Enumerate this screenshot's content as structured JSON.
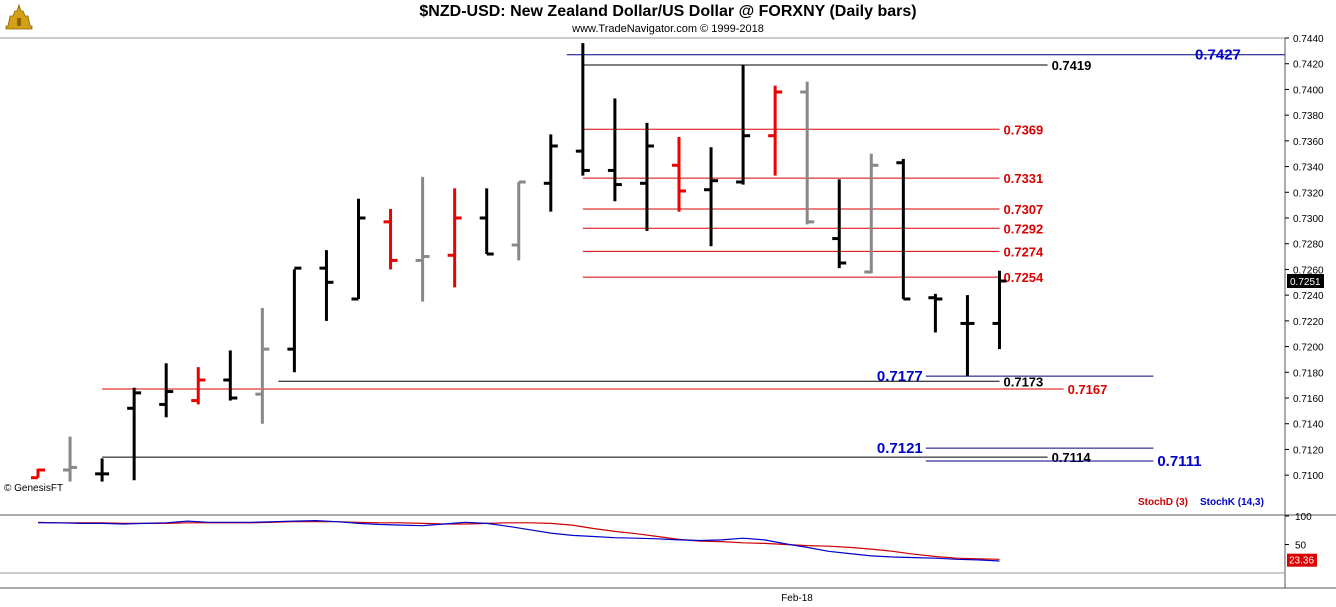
{
  "header": {
    "title": "$NZD-USD:  New Zealand Dollar/US Dollar @ FORXNY  (Daily bars)",
    "subtitle": "www.TradeNavigator.com © 1999-2018"
  },
  "footer": {
    "copyright": "© GenesisFT",
    "x_label": "Feb-18"
  },
  "chart_data": [
    {
      "type": "ohlc",
      "title": "$NZD-USD:  New Zealand Dollar/US Dollar @ FORXNY  (Daily bars)",
      "ylim": [
        0.709,
        0.744
      ],
      "yticks": [
        "0.7440",
        "0.7420",
        "0.7400",
        "0.7380",
        "0.7360",
        "0.7340",
        "0.7320",
        "0.7300",
        "0.7280",
        "0.7260",
        "0.7240",
        "0.7220",
        "0.7200",
        "0.7180",
        "0.7160",
        "0.7140",
        "0.7120",
        "0.7100"
      ],
      "last_price": "0.7251",
      "colors": {
        "up": "#000000",
        "down": "#ee0000",
        "neutral": "#888888"
      },
      "bars": [
        {
          "o": 0.7098,
          "h": 0.7105,
          "l": 0.7098,
          "c": 0.7104,
          "color": "down"
        },
        {
          "o": 0.7104,
          "h": 0.713,
          "l": 0.7095,
          "c": 0.7106,
          "color": "neutral"
        },
        {
          "o": 0.7101,
          "h": 0.7113,
          "l": 0.7095,
          "c": 0.7101,
          "color": "up"
        },
        {
          "o": 0.7152,
          "h": 0.7168,
          "l": 0.7096,
          "c": 0.7164,
          "color": "up"
        },
        {
          "o": 0.7155,
          "h": 0.7187,
          "l": 0.7145,
          "c": 0.7165,
          "color": "up"
        },
        {
          "o": 0.7158,
          "h": 0.7184,
          "l": 0.7155,
          "c": 0.7174,
          "color": "down"
        },
        {
          "o": 0.7174,
          "h": 0.7197,
          "l": 0.7158,
          "c": 0.716,
          "color": "up"
        },
        {
          "o": 0.7163,
          "h": 0.723,
          "l": 0.714,
          "c": 0.7198,
          "color": "neutral"
        },
        {
          "o": 0.7198,
          "h": 0.726,
          "l": 0.718,
          "c": 0.7261,
          "color": "up"
        },
        {
          "o": 0.7261,
          "h": 0.7275,
          "l": 0.722,
          "c": 0.725,
          "color": "up"
        },
        {
          "o": 0.7237,
          "h": 0.7315,
          "l": 0.7237,
          "c": 0.73,
          "color": "up"
        },
        {
          "o": 0.7297,
          "h": 0.7307,
          "l": 0.726,
          "c": 0.7267,
          "color": "down"
        },
        {
          "o": 0.7267,
          "h": 0.7332,
          "l": 0.7235,
          "c": 0.727,
          "color": "neutral"
        },
        {
          "o": 0.7271,
          "h": 0.7323,
          "l": 0.7246,
          "c": 0.73,
          "color": "down"
        },
        {
          "o": 0.73,
          "h": 0.7323,
          "l": 0.7272,
          "c": 0.7272,
          "color": "up"
        },
        {
          "o": 0.7279,
          "h": 0.7328,
          "l": 0.7267,
          "c": 0.7328,
          "color": "neutral"
        },
        {
          "o": 0.7327,
          "h": 0.7365,
          "l": 0.7305,
          "c": 0.7356,
          "color": "up"
        },
        {
          "o": 0.7352,
          "h": 0.7436,
          "l": 0.7333,
          "c": 0.7337,
          "color": "up"
        },
        {
          "o": 0.7337,
          "h": 0.7393,
          "l": 0.7313,
          "c": 0.7326,
          "color": "up"
        },
        {
          "o": 0.7327,
          "h": 0.7374,
          "l": 0.729,
          "c": 0.7356,
          "color": "up"
        },
        {
          "o": 0.7341,
          "h": 0.7363,
          "l": 0.7305,
          "c": 0.7321,
          "color": "down"
        },
        {
          "o": 0.7322,
          "h": 0.7355,
          "l": 0.7278,
          "c": 0.7329,
          "color": "up"
        },
        {
          "o": 0.7328,
          "h": 0.7419,
          "l": 0.7326,
          "c": 0.7364,
          "color": "up"
        },
        {
          "o": 0.7364,
          "h": 0.7403,
          "l": 0.7333,
          "c": 0.7398,
          "color": "down"
        },
        {
          "o": 0.7398,
          "h": 0.7406,
          "l": 0.7295,
          "c": 0.7297,
          "color": "neutral"
        },
        {
          "o": 0.7284,
          "h": 0.733,
          "l": 0.7261,
          "c": 0.7265,
          "color": "up"
        },
        {
          "o": 0.7258,
          "h": 0.735,
          "l": 0.7257,
          "c": 0.7341,
          "color": "neutral"
        },
        {
          "o": 0.7343,
          "h": 0.7346,
          "l": 0.7237,
          "c": 0.7237,
          "color": "up"
        },
        {
          "o": 0.7238,
          "h": 0.7241,
          "l": 0.7211,
          "c": 0.7237,
          "color": "up"
        },
        {
          "o": 0.7218,
          "h": 0.724,
          "l": 0.7177,
          "c": 0.7218,
          "color": "up"
        },
        {
          "o": 0.7218,
          "h": 0.7259,
          "l": 0.7198,
          "c": 0.7251,
          "color": "up"
        }
      ],
      "levels": [
        {
          "value": 0.7427,
          "label": "0.7427",
          "color": "#0000cc",
          "line": "#000080",
          "x_from_bar": 16.5,
          "x_to": "axis",
          "label_side": "right",
          "label_pos": "right"
        },
        {
          "value": 0.7419,
          "label": "0.7419",
          "color": "#000000",
          "line": "#000000",
          "x_from_bar": 17,
          "x_to_bar": 31.5,
          "label_pos": "end"
        },
        {
          "value": 0.7369,
          "label": "0.7369",
          "color": "#dd0000",
          "line": "#dd0000",
          "x_from_bar": 17,
          "x_to_bar": 30,
          "label_pos": "end"
        },
        {
          "value": 0.7331,
          "label": "0.7331",
          "color": "#dd0000",
          "line": "#dd0000",
          "x_from_bar": 17,
          "x_to_bar": 30,
          "label_pos": "end"
        },
        {
          "value": 0.7307,
          "label": "0.7307",
          "color": "#dd0000",
          "line": "#dd0000",
          "x_from_bar": 17,
          "x_to_bar": 30,
          "label_pos": "end"
        },
        {
          "value": 0.7292,
          "label": "0.7292",
          "color": "#dd0000",
          "line": "#dd0000",
          "x_from_bar": 17,
          "x_to_bar": 30,
          "label_pos": "end"
        },
        {
          "value": 0.7274,
          "label": "0.7274",
          "color": "#dd0000",
          "line": "#dd0000",
          "x_from_bar": 17,
          "x_to_bar": 30,
          "label_pos": "end"
        },
        {
          "value": 0.7254,
          "label": "0.7254",
          "color": "#dd0000",
          "line": "#dd0000",
          "x_from_bar": 17,
          "x_to_bar": 30,
          "label_pos": "end"
        },
        {
          "value": 0.7177,
          "label": "0.7177",
          "color": "#0000cc",
          "line": "#000080",
          "x_from_bar": 27.7,
          "x_to_bar": 34.8,
          "label_pos": "start"
        },
        {
          "value": 0.7173,
          "label": "0.7173",
          "color": "#000000",
          "line": "#000000",
          "x_from_bar": 7.5,
          "x_to_bar": 30,
          "label_pos": "end"
        },
        {
          "value": 0.7167,
          "label": "0.7167",
          "color": "#dd0000",
          "line": "#dd0000",
          "x_from_bar": 2,
          "x_to_bar": 32,
          "label_pos": "end"
        },
        {
          "value": 0.7121,
          "label": "0.7121",
          "color": "#0000cc",
          "line": "#000080",
          "x_from_bar": 27.7,
          "x_to_bar": 34.8,
          "label_pos": "start"
        },
        {
          "value": 0.7114,
          "label": "0.7114",
          "color": "#000000",
          "line": "#000000",
          "x_from_bar": 2,
          "x_to_bar": 31.5,
          "label_pos": "end"
        },
        {
          "value": 0.7111,
          "label": "0.7111",
          "color": "#0000cc",
          "line": "#000080",
          "x_from_bar": 27.7,
          "x_to_bar": 34.8,
          "label_pos": "end"
        }
      ]
    },
    {
      "type": "line",
      "ylim": [
        0,
        100
      ],
      "yticks": [
        "100",
        "50"
      ],
      "last_value": "23.36",
      "legend": [
        {
          "name": "StochD (3)",
          "color": "#cc0000"
        },
        {
          "name": "StochK (14,3)",
          "color": "#0000cc"
        }
      ],
      "series": [
        {
          "name": "StochD (3)",
          "color": "#cc0000",
          "values": [
            89,
            88,
            88,
            88,
            87,
            87,
            87,
            88,
            88,
            88,
            88,
            89,
            90,
            90,
            90,
            89,
            88,
            88,
            87,
            86,
            86,
            87,
            88,
            88,
            87,
            84,
            78,
            73,
            69,
            64,
            59,
            56,
            55,
            53,
            52,
            50,
            48,
            47,
            45,
            42,
            38,
            33,
            29,
            26,
            25,
            24
          ]
        },
        {
          "name": "StochK (14,3)",
          "color": "#0000cc",
          "values": [
            88,
            88,
            87,
            87,
            86,
            87,
            88,
            91,
            89,
            89,
            89,
            90,
            91,
            92,
            90,
            87,
            85,
            84,
            83,
            86,
            89,
            87,
            82,
            76,
            70,
            66,
            64,
            62,
            61,
            60,
            58,
            57,
            58,
            61,
            58,
            51,
            45,
            38,
            34,
            30,
            28,
            27,
            26,
            24,
            23,
            21
          ]
        }
      ]
    }
  ]
}
